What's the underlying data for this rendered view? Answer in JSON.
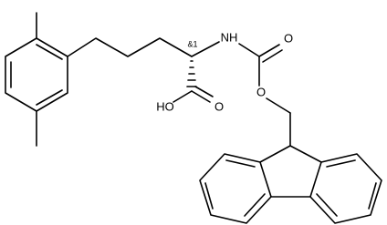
{
  "atoms": [
    "NH",
    "O",
    "O",
    "HO",
    "O"
  ],
  "stereo_label": "&1"
}
